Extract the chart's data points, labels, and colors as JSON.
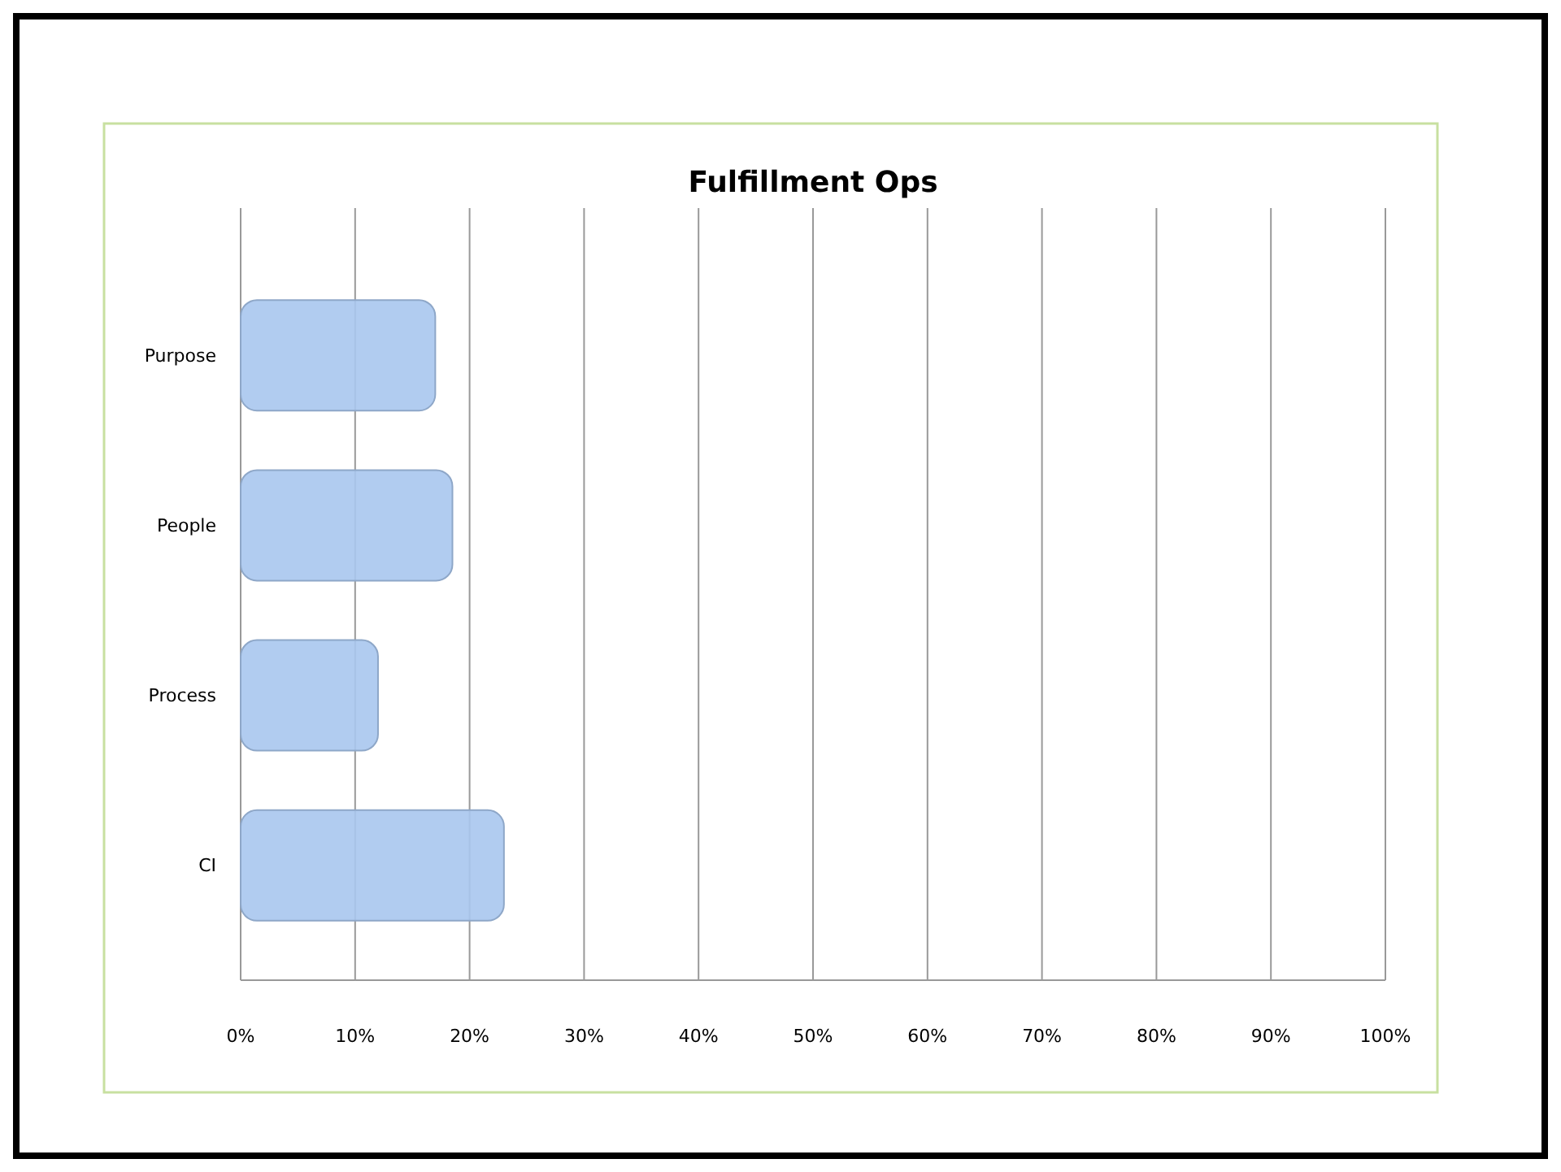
{
  "chart_data": {
    "type": "bar",
    "orientation": "horizontal",
    "title": "Fulfillment Ops",
    "categories": [
      "Purpose",
      "People",
      "Process",
      "CI"
    ],
    "values": [
      17,
      18.5,
      12,
      23
    ],
    "color": "#a9c6ee",
    "xlim": [
      0,
      100
    ],
    "xticks": [
      {
        "value": 0,
        "label": "0%"
      },
      {
        "value": 10,
        "label": "10%"
      },
      {
        "value": 20,
        "label": "20%"
      },
      {
        "value": 30,
        "label": "30%"
      },
      {
        "value": 40,
        "label": "40%"
      },
      {
        "value": 50,
        "label": "50%"
      },
      {
        "value": 60,
        "label": "60%"
      },
      {
        "value": 70,
        "label": "70%"
      },
      {
        "value": 80,
        "label": "80%"
      },
      {
        "value": 90,
        "label": "90%"
      },
      {
        "value": 100,
        "label": "100%"
      }
    ],
    "grid": "x"
  }
}
